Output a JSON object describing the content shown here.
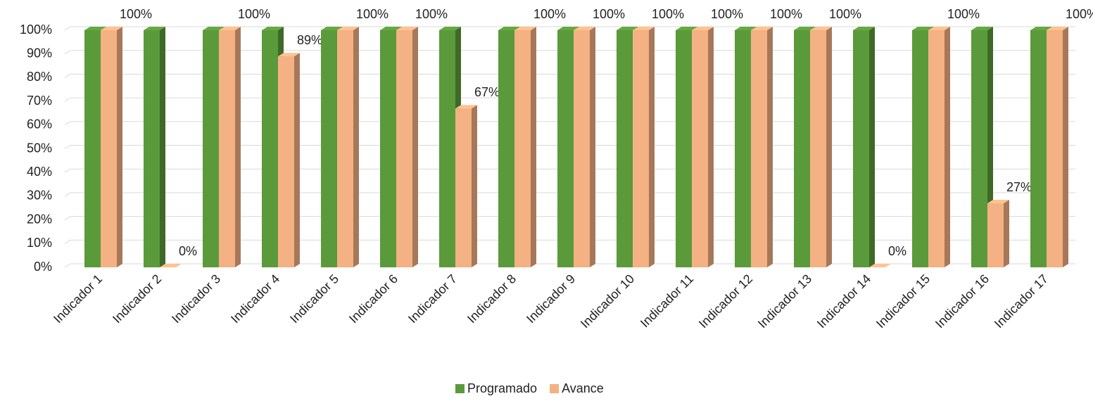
{
  "chart_data": {
    "type": "bar",
    "categories": [
      "Indicador 1",
      "Indicador 2",
      "Indicador 3",
      "Indicador 4",
      "Indicador 5",
      "Indicador 6",
      "Indicador 7",
      "Indicador 8",
      "Indicador 9",
      "Indicador 10",
      "Indicador 11",
      "Indicador 12",
      "Indicador 13",
      "Indicador 14",
      "Indicador 15",
      "Indicador 16",
      "Indicador 17"
    ],
    "series": [
      {
        "name": "Programado",
        "color": "#5b9a3b",
        "values": [
          100,
          100,
          100,
          100,
          100,
          100,
          100,
          100,
          100,
          100,
          100,
          100,
          100,
          100,
          100,
          100,
          100
        ]
      },
      {
        "name": "Avance",
        "color": "#f4b183",
        "values": [
          100,
          0,
          100,
          89,
          100,
          100,
          67,
          100,
          100,
          100,
          100,
          100,
          100,
          0,
          100,
          27,
          100
        ],
        "value_labels": [
          "100%",
          "0%",
          "100%",
          "89%",
          "100%",
          "100%",
          "67%",
          "100%",
          "100%",
          "100%",
          "100%",
          "100%",
          "100%",
          "0%",
          "100%",
          "27%",
          "100%"
        ]
      }
    ],
    "ylim": [
      0,
      100
    ],
    "yticks": [
      {
        "value": 0,
        "label": "0%"
      },
      {
        "value": 10,
        "label": "10%"
      },
      {
        "value": 20,
        "label": "20%"
      },
      {
        "value": 30,
        "label": "30%"
      },
      {
        "value": 40,
        "label": "40%"
      },
      {
        "value": 50,
        "label": "50%"
      },
      {
        "value": 60,
        "label": "60%"
      },
      {
        "value": 70,
        "label": "70%"
      },
      {
        "value": 80,
        "label": "80%"
      },
      {
        "value": 90,
        "label": "90%"
      },
      {
        "value": 100,
        "label": "100%"
      }
    ],
    "grid": true,
    "legend": "bottom"
  }
}
